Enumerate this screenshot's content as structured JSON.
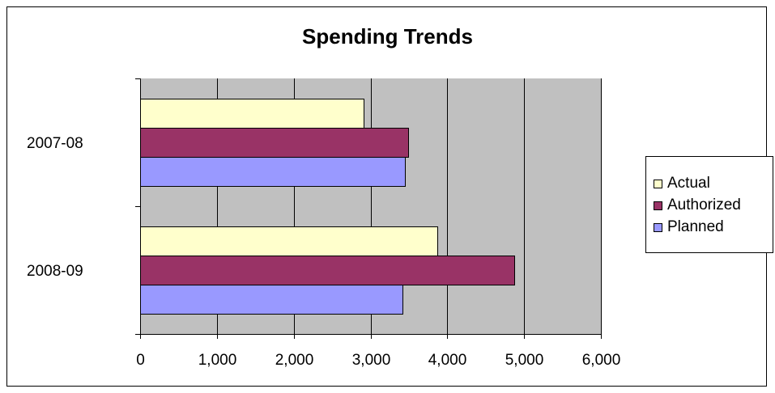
{
  "chart_data": {
    "type": "bar",
    "orientation": "horizontal",
    "title": "Spending Trends",
    "categories": [
      "2007-08",
      "2008-09"
    ],
    "series": [
      {
        "name": "Actual",
        "color": "#ffffcc",
        "values": [
          2910,
          3870
        ]
      },
      {
        "name": "Authorized",
        "color": "#993366",
        "values": [
          3490,
          4870
        ]
      },
      {
        "name": "Planned",
        "color": "#9999ff",
        "values": [
          3450,
          3420
        ]
      }
    ],
    "xlim": [
      0,
      6000
    ],
    "xticks": [
      0,
      1000,
      2000,
      3000,
      4000,
      5000,
      6000
    ],
    "xtick_labels": [
      "0",
      "1,000",
      "2,000",
      "3,000",
      "4,000",
      "5,000",
      "6,000"
    ],
    "grid": true,
    "plot_background": "#c0c0c0",
    "legend_position": "right"
  }
}
